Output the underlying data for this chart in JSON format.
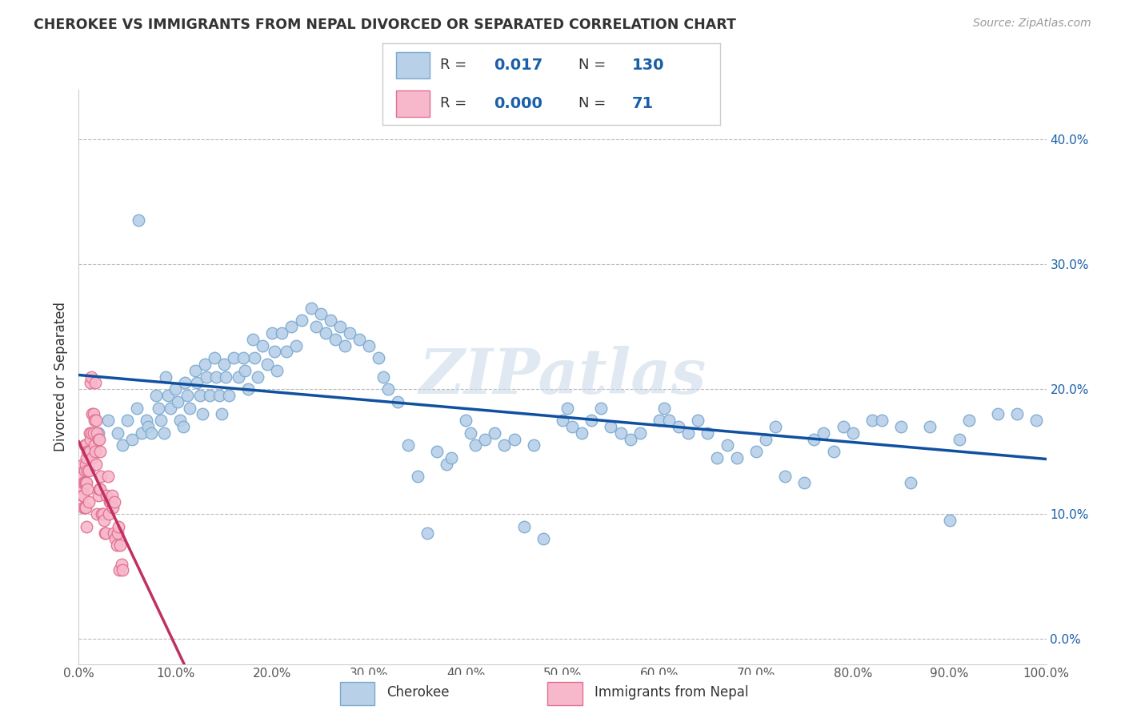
{
  "title": "CHEROKEE VS IMMIGRANTS FROM NEPAL DIVORCED OR SEPARATED CORRELATION CHART",
  "source": "Source: ZipAtlas.com",
  "ylabel": "Divorced or Separated",
  "xlim": [
    0.0,
    1.0
  ],
  "ylim": [
    -0.02,
    0.44
  ],
  "yticks": [
    0.0,
    0.1,
    0.2,
    0.3,
    0.4
  ],
  "xticks": [
    0.0,
    0.1,
    0.2,
    0.3,
    0.4,
    0.5,
    0.6,
    0.7,
    0.8,
    0.9,
    1.0
  ],
  "cherokee_color": "#b8d0e8",
  "nepal_color": "#f8b8cc",
  "cherokee_edge": "#7aaad0",
  "nepal_edge": "#e07090",
  "trend_cherokee_color": "#1050a0",
  "trend_nepal_color": "#c03060",
  "R_cherokee": "0.017",
  "N_cherokee": "130",
  "R_nepal": "0.000",
  "N_nepal": "71",
  "watermark": "ZIPatlas",
  "background_color": "#ffffff",
  "grid_color": "#bbbbbb",
  "cherokee_x": [
    0.02,
    0.03,
    0.04,
    0.045,
    0.05,
    0.055,
    0.06,
    0.062,
    0.065,
    0.07,
    0.072,
    0.075,
    0.08,
    0.082,
    0.085,
    0.088,
    0.09,
    0.092,
    0.095,
    0.1,
    0.102,
    0.105,
    0.108,
    0.11,
    0.112,
    0.115,
    0.12,
    0.122,
    0.125,
    0.128,
    0.13,
    0.132,
    0.135,
    0.14,
    0.142,
    0.145,
    0.148,
    0.15,
    0.152,
    0.155,
    0.16,
    0.165,
    0.17,
    0.172,
    0.175,
    0.18,
    0.182,
    0.185,
    0.19,
    0.195,
    0.2,
    0.202,
    0.205,
    0.21,
    0.215,
    0.22,
    0.225,
    0.23,
    0.24,
    0.245,
    0.25,
    0.255,
    0.26,
    0.265,
    0.27,
    0.275,
    0.28,
    0.29,
    0.3,
    0.31,
    0.315,
    0.32,
    0.33,
    0.34,
    0.35,
    0.36,
    0.37,
    0.38,
    0.385,
    0.4,
    0.405,
    0.41,
    0.42,
    0.43,
    0.44,
    0.45,
    0.46,
    0.47,
    0.48,
    0.5,
    0.505,
    0.51,
    0.52,
    0.53,
    0.54,
    0.55,
    0.56,
    0.57,
    0.58,
    0.6,
    0.605,
    0.61,
    0.62,
    0.63,
    0.64,
    0.65,
    0.66,
    0.67,
    0.68,
    0.7,
    0.71,
    0.72,
    0.73,
    0.75,
    0.76,
    0.77,
    0.78,
    0.79,
    0.8,
    0.82,
    0.83,
    0.85,
    0.86,
    0.88,
    0.9,
    0.91,
    0.92,
    0.95,
    0.97,
    0.99
  ],
  "cherokee_y": [
    0.165,
    0.175,
    0.165,
    0.155,
    0.175,
    0.16,
    0.185,
    0.335,
    0.165,
    0.175,
    0.17,
    0.165,
    0.195,
    0.185,
    0.175,
    0.165,
    0.21,
    0.195,
    0.185,
    0.2,
    0.19,
    0.175,
    0.17,
    0.205,
    0.195,
    0.185,
    0.215,
    0.205,
    0.195,
    0.18,
    0.22,
    0.21,
    0.195,
    0.225,
    0.21,
    0.195,
    0.18,
    0.22,
    0.21,
    0.195,
    0.225,
    0.21,
    0.225,
    0.215,
    0.2,
    0.24,
    0.225,
    0.21,
    0.235,
    0.22,
    0.245,
    0.23,
    0.215,
    0.245,
    0.23,
    0.25,
    0.235,
    0.255,
    0.265,
    0.25,
    0.26,
    0.245,
    0.255,
    0.24,
    0.25,
    0.235,
    0.245,
    0.24,
    0.235,
    0.225,
    0.21,
    0.2,
    0.19,
    0.155,
    0.13,
    0.085,
    0.15,
    0.14,
    0.145,
    0.175,
    0.165,
    0.155,
    0.16,
    0.165,
    0.155,
    0.16,
    0.09,
    0.155,
    0.08,
    0.175,
    0.185,
    0.17,
    0.165,
    0.175,
    0.185,
    0.17,
    0.165,
    0.16,
    0.165,
    0.175,
    0.185,
    0.175,
    0.17,
    0.165,
    0.175,
    0.165,
    0.145,
    0.155,
    0.145,
    0.15,
    0.16,
    0.17,
    0.13,
    0.125,
    0.16,
    0.165,
    0.15,
    0.17,
    0.165,
    0.175,
    0.175,
    0.17,
    0.125,
    0.17,
    0.095,
    0.16,
    0.175,
    0.18,
    0.18,
    0.175
  ],
  "nepal_x": [
    0.004,
    0.004,
    0.004,
    0.005,
    0.005,
    0.005,
    0.005,
    0.006,
    0.006,
    0.006,
    0.006,
    0.007,
    0.007,
    0.007,
    0.007,
    0.008,
    0.008,
    0.008,
    0.009,
    0.009,
    0.009,
    0.01,
    0.01,
    0.01,
    0.011,
    0.011,
    0.012,
    0.012,
    0.013,
    0.013,
    0.014,
    0.014,
    0.015,
    0.015,
    0.016,
    0.016,
    0.017,
    0.017,
    0.018,
    0.018,
    0.019,
    0.019,
    0.02,
    0.02,
    0.021,
    0.021,
    0.022,
    0.022,
    0.023,
    0.024,
    0.025,
    0.026,
    0.027,
    0.028,
    0.029,
    0.03,
    0.031,
    0.032,
    0.033,
    0.034,
    0.035,
    0.036,
    0.037,
    0.038,
    0.039,
    0.04,
    0.041,
    0.042,
    0.043,
    0.044,
    0.045
  ],
  "nepal_y": [
    0.13,
    0.12,
    0.115,
    0.14,
    0.125,
    0.115,
    0.105,
    0.155,
    0.135,
    0.125,
    0.105,
    0.155,
    0.14,
    0.125,
    0.105,
    0.145,
    0.125,
    0.09,
    0.15,
    0.135,
    0.12,
    0.15,
    0.135,
    0.11,
    0.165,
    0.15,
    0.205,
    0.16,
    0.21,
    0.165,
    0.18,
    0.145,
    0.18,
    0.165,
    0.175,
    0.155,
    0.205,
    0.15,
    0.175,
    0.14,
    0.165,
    0.1,
    0.16,
    0.115,
    0.16,
    0.12,
    0.15,
    0.12,
    0.13,
    0.1,
    0.1,
    0.095,
    0.085,
    0.085,
    0.115,
    0.13,
    0.1,
    0.11,
    0.11,
    0.115,
    0.105,
    0.085,
    0.11,
    0.08,
    0.075,
    0.085,
    0.09,
    0.055,
    0.075,
    0.06,
    0.055
  ]
}
